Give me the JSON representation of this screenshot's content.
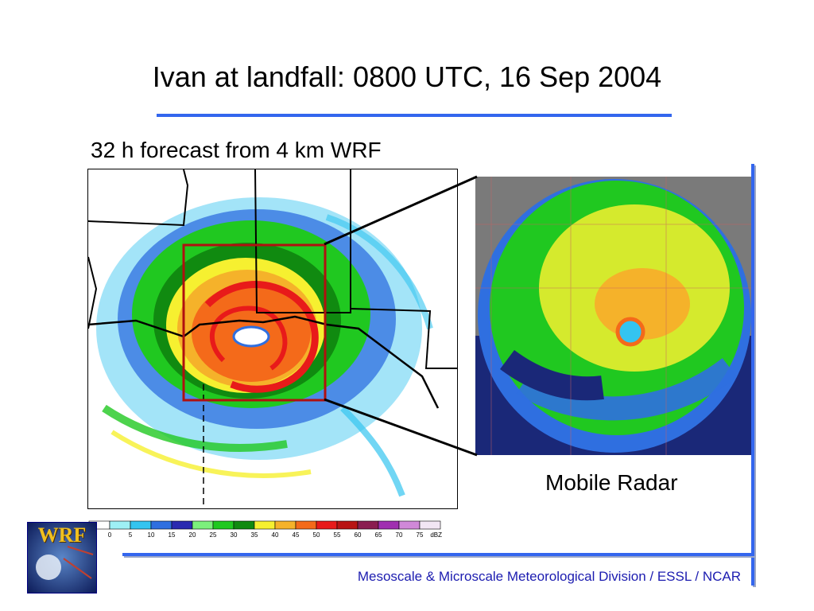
{
  "slide": {
    "title": "Ivan at landfall: 0800 UTC, 16 Sep 2004",
    "subtitle": "32 h forecast from 4 km WRF",
    "radar_caption": "Mobile Radar",
    "footer": "Mesoscale & Microscale Meteorological Division / ESSL / NCAR",
    "logo_text": "WRF",
    "accent_color": "#3366ee",
    "footer_color": "#1c1cb0"
  },
  "colorbar": {
    "unit": "dBZ",
    "bins": [
      {
        "label": "0",
        "color": "#ffffff"
      },
      {
        "label": "5",
        "color": "#9ef0f5"
      },
      {
        "label": "10",
        "color": "#34c4f0"
      },
      {
        "label": "15",
        "color": "#2f6fe0"
      },
      {
        "label": "20",
        "color": "#2a2ab0"
      },
      {
        "label": "25",
        "color": "#7cf07c"
      },
      {
        "label": "30",
        "color": "#20c820"
      },
      {
        "label": "35",
        "color": "#108a10"
      },
      {
        "label": "40",
        "color": "#f6f030"
      },
      {
        "label": "45",
        "color": "#f5b22a"
      },
      {
        "label": "50",
        "color": "#f46a1a"
      },
      {
        "label": "55",
        "color": "#e81a1a"
      },
      {
        "label": "60",
        "color": "#b81414"
      },
      {
        "label": "65",
        "color": "#8a1e50"
      },
      {
        "label": "70",
        "color": "#a030b0"
      },
      {
        "label": "75",
        "color": "#d088d8"
      },
      {
        "label": "",
        "color": "#f2e6f4"
      }
    ]
  }
}
